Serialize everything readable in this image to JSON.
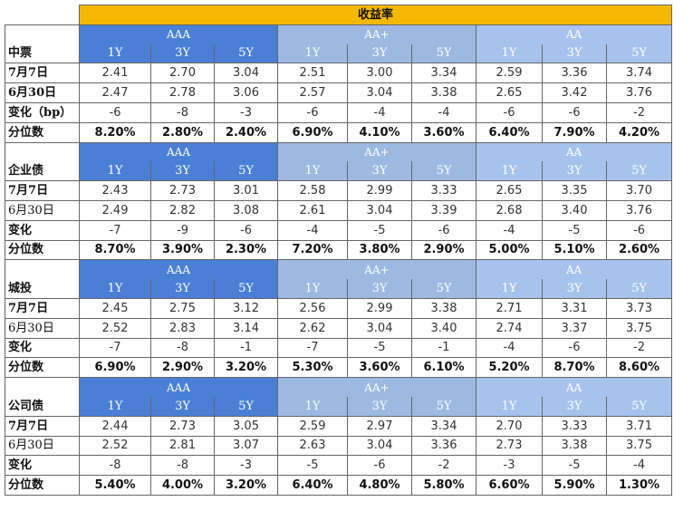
{
  "title": "收益率",
  "grades": [
    "AAA",
    "AA+",
    "AA"
  ],
  "tenors": [
    "1Y",
    "3Y",
    "5Y"
  ],
  "sections": [
    {
      "name": "中票",
      "rows": [
        {
          "label": "7月7日",
          "bold": true,
          "kind": "num",
          "values": [
            "2.41",
            "2.70",
            "3.04",
            "2.51",
            "3.00",
            "3.34",
            "2.59",
            "3.36",
            "3.74"
          ]
        },
        {
          "label": "6月30日",
          "bold": true,
          "kind": "num",
          "values": [
            "2.47",
            "2.78",
            "3.06",
            "2.57",
            "3.04",
            "3.38",
            "2.65",
            "3.42",
            "3.76"
          ]
        },
        {
          "label": "变化（bp）",
          "bold": true,
          "kind": "num",
          "values": [
            "-6",
            "-8",
            "-3",
            "-6",
            "-4",
            "-4",
            "-6",
            "-6",
            "-2"
          ]
        },
        {
          "label": "分位数",
          "bold": true,
          "kind": "pct",
          "values": [
            "8.20%",
            "2.80%",
            "2.40%",
            "6.90%",
            "4.10%",
            "3.60%",
            "6.40%",
            "7.90%",
            "4.20%"
          ]
        }
      ]
    },
    {
      "name": "企业债",
      "rows": [
        {
          "label": "7月7日",
          "bold": true,
          "kind": "num",
          "values": [
            "2.43",
            "2.73",
            "3.01",
            "2.58",
            "2.99",
            "3.33",
            "2.65",
            "3.35",
            "3.70"
          ]
        },
        {
          "label": "6月30日",
          "bold": false,
          "kind": "num",
          "values": [
            "2.49",
            "2.82",
            "3.08",
            "2.61",
            "3.04",
            "3.39",
            "2.68",
            "3.40",
            "3.76"
          ]
        },
        {
          "label": "变化",
          "bold": true,
          "kind": "num",
          "values": [
            "-7",
            "-9",
            "-6",
            "-4",
            "-5",
            "-6",
            "-4",
            "-5",
            "-6"
          ]
        },
        {
          "label": "分位数",
          "bold": true,
          "kind": "pct",
          "values": [
            "8.70%",
            "3.90%",
            "2.30%",
            "7.20%",
            "3.80%",
            "2.90%",
            "5.00%",
            "5.10%",
            "2.60%"
          ]
        }
      ]
    },
    {
      "name": "城投",
      "rows": [
        {
          "label": "7月7日",
          "bold": true,
          "kind": "num",
          "values": [
            "2.45",
            "2.75",
            "3.12",
            "2.56",
            "2.99",
            "3.38",
            "2.71",
            "3.31",
            "3.73"
          ]
        },
        {
          "label": "6月30日",
          "bold": false,
          "kind": "num",
          "values": [
            "2.52",
            "2.83",
            "3.14",
            "2.62",
            "3.04",
            "3.40",
            "2.74",
            "3.37",
            "3.75"
          ]
        },
        {
          "label": "变化",
          "bold": true,
          "kind": "num",
          "values": [
            "-7",
            "-8",
            "-1",
            "-7",
            "-5",
            "-1",
            "-4",
            "-6",
            "-2"
          ]
        },
        {
          "label": "分位数",
          "bold": true,
          "kind": "pct",
          "values": [
            "6.90%",
            "2.90%",
            "3.20%",
            "5.30%",
            "3.60%",
            "6.10%",
            "5.20%",
            "8.70%",
            "8.60%"
          ]
        }
      ]
    },
    {
      "name": "公司债",
      "rows": [
        {
          "label": "7月7日",
          "bold": true,
          "kind": "num",
          "values": [
            "2.44",
            "2.73",
            "3.05",
            "2.59",
            "2.97",
            "3.34",
            "2.70",
            "3.33",
            "3.71"
          ]
        },
        {
          "label": "6月30日",
          "bold": false,
          "kind": "num",
          "values": [
            "2.52",
            "2.81",
            "3.07",
            "2.63",
            "3.04",
            "3.36",
            "2.73",
            "3.38",
            "3.75"
          ]
        },
        {
          "label": "变化",
          "bold": true,
          "kind": "num",
          "values": [
            "-8",
            "-8",
            "-3",
            "-5",
            "-6",
            "-2",
            "-3",
            "-5",
            "-4"
          ]
        },
        {
          "label": "分位数",
          "bold": true,
          "kind": "pct",
          "values": [
            "5.40%",
            "4.00%",
            "3.20%",
            "6.40%",
            "4.80%",
            "5.80%",
            "6.60%",
            "5.90%",
            "1.30%"
          ]
        }
      ]
    }
  ]
}
